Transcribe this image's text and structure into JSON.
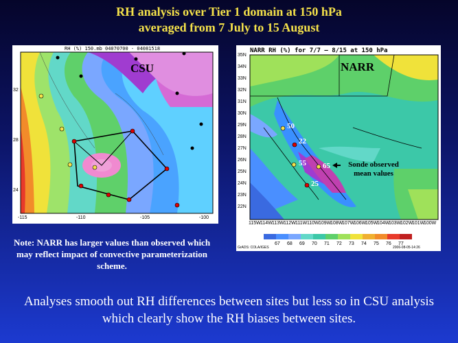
{
  "title": {
    "line1": "RH analysis over Tier 1 domain at 150 hPa",
    "line2": "averaged from 7 July to 15 August"
  },
  "csu": {
    "header": "RH (%)  150.mb 04070700 - 04081518",
    "label": "CSU",
    "lat_ticks": [
      "32",
      "28",
      "24"
    ],
    "lon_ticks": [
      "-115",
      "-110",
      "-105",
      "-100"
    ]
  },
  "narr": {
    "header": "NARR RH (%) for 7/7 – 8/15 at 150 hPa",
    "label": "NARR",
    "lat_ticks": [
      "35N",
      "34N",
      "33N",
      "32N",
      "31N",
      "30N",
      "29N",
      "28N",
      "27N",
      "26N",
      "25N",
      "24N",
      "23N",
      "22N"
    ],
    "lon_ticks": [
      "115W",
      "114W",
      "113W",
      "112W",
      "111W",
      "110W",
      "109W",
      "108W",
      "107W",
      "106W",
      "105W",
      "104W",
      "103W",
      "102W",
      "101W",
      "100W"
    ],
    "sonde_values": [
      "50",
      "22",
      "55",
      "65",
      "25"
    ],
    "sonde_label": "Sonde observed mean values",
    "legend": [
      "67",
      "68",
      "69",
      "70",
      "71",
      "72",
      "73",
      "74",
      "75",
      "76",
      "77"
    ],
    "footer_left": "GrADS: COLA/IGES",
    "footer_right": "2006-08-05-14:26"
  },
  "note": "Note: NARR has larger values than observed which may reflect impact of convective parameterization scheme.",
  "bottom_text": "Analyses smooth out RH differences between sites but less so in CSU analysis which clearly show the RH biases between sites.",
  "colors": {
    "title": "#f5e24a",
    "note": "#ffffff"
  }
}
